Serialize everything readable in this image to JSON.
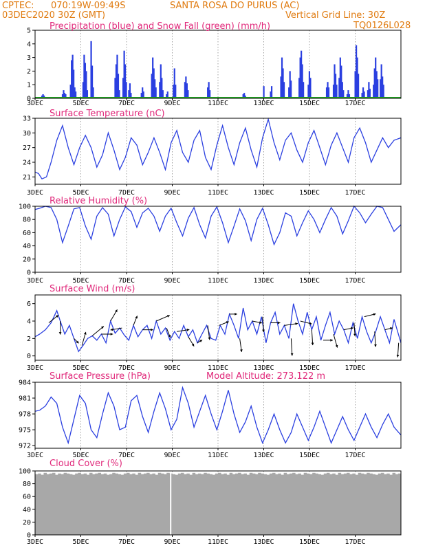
{
  "header": {
    "source": "CPTEC:",
    "coords": "070:19W-09:49S",
    "station": "SANTA ROSA DO PURUS (AC)",
    "run_time": "03DEC2020 30Z (GMT)",
    "grid_note": "Vertical Grid Line: 30Z",
    "model_code": "TQ0126L028"
  },
  "colors": {
    "header": "#e07b10",
    "title": "#e0287a",
    "precip": "#2a3fe0",
    "snow": "#22aa22",
    "line": "#2a3fe0",
    "cloud": "#a8a8a8",
    "wind_arrow": "#000000"
  },
  "x_axis": {
    "start_label": "3DEC",
    "labels": [
      "3DEC",
      "5DEC",
      "7DEC",
      "9DEC",
      "11DEC",
      "13DEC",
      "15DEC",
      "17DEC"
    ],
    "days_span": [
      3.0,
      19.0
    ],
    "label_days": [
      3,
      5,
      7,
      9,
      11,
      13,
      15,
      17
    ]
  },
  "chart_data": [
    {
      "type": "bar",
      "title": "Precipitation (blue) and Snow Fall (green) (mm/h)",
      "ylim": [
        0,
        5
      ],
      "yticks": [
        "0",
        "1",
        "2",
        "3",
        "4",
        "5"
      ],
      "bursts": [
        {
          "day": 3.3,
          "values": [
            0.2,
            0.3,
            0.2
          ]
        },
        {
          "day": 4.2,
          "values": [
            0.3,
            0.6,
            0.4,
            0.3
          ]
        },
        {
          "day": 4.55,
          "values": [
            1.0,
            2.8,
            3.2,
            2.1,
            0.8,
            0.5
          ]
        },
        {
          "day": 5.1,
          "values": [
            1.2,
            3.2,
            2.6,
            2.0,
            0.6
          ]
        },
        {
          "day": 5.45,
          "values": [
            4.2,
            2.4,
            0.8
          ]
        },
        {
          "day": 6.5,
          "values": [
            1.5,
            2.5,
            3.2,
            1.8,
            0.6
          ]
        },
        {
          "day": 6.85,
          "values": [
            1.5,
            3.5,
            2.5,
            1.2
          ]
        },
        {
          "day": 7.1,
          "values": [
            0.6,
            1.1,
            0.4
          ]
        },
        {
          "day": 7.65,
          "values": [
            0.4,
            0.8,
            0.5
          ]
        },
        {
          "day": 8.1,
          "values": [
            1.8,
            3.0,
            2.2,
            1.4,
            0.8
          ]
        },
        {
          "day": 8.45,
          "values": [
            1.2,
            2.5,
            1.5,
            0.6
          ]
        },
        {
          "day": 8.75,
          "values": [
            0.3,
            0.5
          ]
        },
        {
          "day": 9.05,
          "values": [
            1.0,
            2.2,
            1.0
          ]
        },
        {
          "day": 9.55,
          "values": [
            1.2,
            1.6,
            1.1,
            0.6
          ]
        },
        {
          "day": 10.55,
          "values": [
            0.8,
            1.2,
            0.6
          ]
        },
        {
          "day": 12.1,
          "values": [
            0.3,
            0.4,
            0.2
          ]
        },
        {
          "day": 13.0,
          "values": [
            0.9
          ]
        },
        {
          "day": 13.3,
          "values": [
            0.5,
            0.9
          ]
        },
        {
          "day": 13.75,
          "values": [
            1.6,
            3.0,
            2.2,
            1.2
          ]
        },
        {
          "day": 14.1,
          "values": [
            0.8,
            2.0,
            1.3
          ]
        },
        {
          "day": 14.55,
          "values": [
            1.5,
            3.0,
            3.5,
            2.5,
            1.2
          ]
        },
        {
          "day": 14.95,
          "values": [
            1.0,
            2.0,
            1.5
          ]
        },
        {
          "day": 15.75,
          "values": [
            0.8,
            1.2,
            0.8
          ]
        },
        {
          "day": 16.05,
          "values": [
            1.0,
            2.5,
            1.8,
            1.0
          ]
        },
        {
          "day": 16.3,
          "values": [
            1.5,
            3.0,
            2.4,
            1.2,
            0.6
          ]
        },
        {
          "day": 16.65,
          "values": [
            0.3,
            0.6,
            0.3
          ]
        },
        {
          "day": 17.0,
          "values": [
            2.0,
            3.9,
            3.0,
            1.8
          ]
        },
        {
          "day": 17.3,
          "values": [
            0.4,
            0.8,
            0.5
          ]
        },
        {
          "day": 17.55,
          "values": [
            0.6,
            1.2,
            0.7
          ]
        },
        {
          "day": 17.8,
          "values": [
            1.0,
            2.2,
            3.0,
            2.0,
            1.4
          ]
        },
        {
          "day": 18.1,
          "values": [
            1.4,
            2.5,
            1.6,
            1.0
          ]
        }
      ],
      "snow": 0
    },
    {
      "type": "line",
      "title": "Surface Temperature (nC)",
      "ylim": [
        19.5,
        33
      ],
      "yticks": [
        21,
        24,
        27,
        30,
        33
      ],
      "x": [
        3.0,
        3.15,
        3.3,
        3.5,
        3.7,
        3.95,
        4.2,
        4.45,
        4.7,
        4.95,
        5.2,
        5.45,
        5.7,
        5.95,
        6.2,
        6.45,
        6.7,
        6.95,
        7.2,
        7.45,
        7.7,
        7.95,
        8.2,
        8.45,
        8.7,
        8.95,
        9.2,
        9.45,
        9.7,
        9.95,
        10.2,
        10.45,
        10.7,
        10.95,
        11.2,
        11.45,
        11.7,
        11.95,
        12.2,
        12.45,
        12.7,
        12.95,
        13.2,
        13.45,
        13.7,
        13.95,
        14.2,
        14.45,
        14.7,
        14.95,
        15.2,
        15.45,
        15.7,
        15.95,
        16.2,
        16.45,
        16.7,
        16.95,
        17.2,
        17.45,
        17.7,
        17.95,
        18.2,
        18.45,
        18.7,
        19.0
      ],
      "y": [
        22,
        21.7,
        20.6,
        21,
        24,
        28.5,
        31.5,
        27,
        23.5,
        27,
        29.5,
        27,
        23,
        25.5,
        30,
        26.5,
        22.5,
        25,
        29,
        27.5,
        23.5,
        26,
        29,
        26,
        22.5,
        28,
        30.5,
        26,
        24,
        28.5,
        30.5,
        25,
        22.5,
        27.5,
        31.5,
        27,
        23.5,
        28,
        31,
        26.5,
        23,
        29,
        32.8,
        28,
        24.5,
        28.5,
        30,
        26.5,
        24,
        28,
        30.5,
        27,
        23.5,
        27.5,
        30,
        27,
        24,
        29,
        31,
        28,
        24,
        26.5,
        29,
        27,
        28.5,
        29
      ],
      "xlabels": [
        "3DEC",
        "5DEC",
        "7DEC",
        "9DEC",
        "11DEC",
        "13DEC",
        "15DEC",
        "17DEC"
      ]
    },
    {
      "type": "line",
      "title": "Relative Humidity (%)",
      "ylim": [
        0,
        100
      ],
      "yticks": [
        0,
        20,
        40,
        60,
        80,
        100
      ],
      "x": [
        3.0,
        3.2,
        3.45,
        3.7,
        3.95,
        4.2,
        4.45,
        4.7,
        4.95,
        5.2,
        5.45,
        5.7,
        5.95,
        6.2,
        6.45,
        6.7,
        6.95,
        7.2,
        7.45,
        7.7,
        7.95,
        8.2,
        8.45,
        8.7,
        8.95,
        9.2,
        9.45,
        9.7,
        9.95,
        10.2,
        10.45,
        10.7,
        10.95,
        11.2,
        11.45,
        11.7,
        11.95,
        12.2,
        12.45,
        12.7,
        12.95,
        13.2,
        13.45,
        13.7,
        13.95,
        14.2,
        14.45,
        14.7,
        14.95,
        15.2,
        15.45,
        15.7,
        15.95,
        16.2,
        16.45,
        16.7,
        16.95,
        17.2,
        17.45,
        17.7,
        17.95,
        18.2,
        18.45,
        18.7,
        19.0
      ],
      "y": [
        95,
        97,
        100,
        98,
        80,
        45,
        70,
        96,
        98,
        70,
        50,
        85,
        98,
        88,
        55,
        80,
        99,
        92,
        68,
        90,
        97,
        85,
        62,
        85,
        97,
        75,
        55,
        82,
        98,
        72,
        52,
        85,
        99,
        75,
        45,
        70,
        96,
        78,
        48,
        80,
        97,
        72,
        42,
        60,
        90,
        85,
        55,
        75,
        93,
        80,
        60,
        80,
        98,
        85,
        58,
        78,
        100,
        90,
        75,
        88,
        100,
        98,
        80,
        62,
        72
      ],
      "xlabels": [
        "3DEC",
        "5DEC",
        "7DEC",
        "9DEC",
        "11DEC",
        "13DEC",
        "15DEC",
        "17DEC"
      ]
    },
    {
      "type": "line",
      "title": "Surface Wind (m/s)",
      "ylim": [
        -0.5,
        7
      ],
      "yticks": [
        0,
        2,
        4,
        6
      ],
      "x": [
        3.0,
        3.2,
        3.45,
        3.7,
        3.95,
        4.1,
        4.3,
        4.5,
        4.7,
        4.9,
        5.1,
        5.3,
        5.5,
        5.7,
        5.9,
        6.1,
        6.3,
        6.5,
        6.7,
        6.9,
        7.1,
        7.3,
        7.5,
        7.7,
        7.9,
        8.1,
        8.3,
        8.5,
        8.7,
        8.9,
        9.1,
        9.3,
        9.5,
        9.7,
        9.9,
        10.1,
        10.3,
        10.5,
        10.7,
        10.9,
        11.1,
        11.3,
        11.5,
        11.7,
        11.9,
        12.1,
        12.3,
        12.5,
        12.7,
        12.9,
        13.1,
        13.3,
        13.5,
        13.7,
        13.9,
        14.1,
        14.3,
        14.5,
        14.7,
        14.9,
        15.1,
        15.3,
        15.5,
        15.7,
        15.9,
        16.1,
        16.3,
        16.5,
        16.7,
        16.9,
        17.1,
        17.3,
        17.5,
        17.7,
        17.9,
        18.1,
        18.3,
        18.5,
        18.7,
        19.0
      ],
      "y": [
        2.2,
        2.5,
        3.0,
        3.8,
        5.2,
        4.0,
        2.5,
        3.5,
        2.0,
        0.5,
        1.2,
        2.0,
        2.3,
        1.8,
        2.5,
        1.5,
        4.0,
        2.6,
        3.2,
        2.4,
        1.8,
        3.5,
        2.2,
        3.0,
        3.5,
        2.0,
        4.0,
        2.5,
        3.2,
        1.8,
        2.8,
        2.0,
        3.5,
        2.2,
        3.0,
        1.5,
        2.5,
        3.5,
        2.0,
        1.8,
        3.5,
        2.5,
        4.8,
        3.5,
        2.0,
        5.5,
        3.0,
        4.0,
        2.5,
        4.5,
        1.5,
        3.8,
        5.0,
        2.5,
        3.5,
        2.0,
        6.0,
        4.0,
        2.5,
        5.0,
        3.0,
        4.5,
        1.8,
        3.5,
        5.0,
        2.5,
        4.0,
        3.0,
        1.5,
        3.8,
        2.0,
        4.5,
        2.8,
        1.5,
        2.8,
        4.5,
        3.0,
        1.5,
        4.2,
        1.5
      ],
      "arrows": [
        {
          "day": 3.6,
          "u": 1.0,
          "v": 0.8
        },
        {
          "day": 4.1,
          "u": 0.0,
          "v": -1.4
        },
        {
          "day": 4.7,
          "u": 0.5,
          "v": -0.5
        },
        {
          "day": 5.05,
          "u": 0.4,
          "v": 1.4
        },
        {
          "day": 5.5,
          "u": 1.2,
          "v": 1.0
        },
        {
          "day": 5.9,
          "u": 1.2,
          "v": 0.0
        },
        {
          "day": 6.3,
          "u": 0.7,
          "v": 1.2
        },
        {
          "day": 6.8,
          "u": -1.2,
          "v": -0.2
        },
        {
          "day": 7.3,
          "u": 0.4,
          "v": 1.0
        },
        {
          "day": 7.7,
          "u": 1.1,
          "v": 0.0
        },
        {
          "day": 8.3,
          "u": 1.4,
          "v": 0.6
        },
        {
          "day": 8.75,
          "u": 0.4,
          "v": -1.0
        },
        {
          "day": 9.2,
          "u": 1.3,
          "v": 0.2
        },
        {
          "day": 9.7,
          "u": 0.6,
          "v": -1.0
        },
        {
          "day": 10.1,
          "u": 0.5,
          "v": 0.3
        },
        {
          "day": 10.55,
          "u": 0.2,
          "v": -1.5
        },
        {
          "day": 11.05,
          "u": 1.0,
          "v": 0.4
        },
        {
          "day": 11.5,
          "u": 0.8,
          "v": 0.0
        },
        {
          "day": 11.95,
          "u": 0.2,
          "v": -1.4
        },
        {
          "day": 12.5,
          "u": 1.0,
          "v": -0.2
        },
        {
          "day": 12.95,
          "u": 0.1,
          "v": -1.6
        },
        {
          "day": 13.3,
          "u": 1.0,
          "v": 0.0
        },
        {
          "day": 13.9,
          "u": 1.4,
          "v": 0.2
        },
        {
          "day": 14.2,
          "u": 0.1,
          "v": -1.8
        },
        {
          "day": 14.6,
          "u": 1.2,
          "v": -0.3
        },
        {
          "day": 15.1,
          "u": 0.1,
          "v": -1.6
        },
        {
          "day": 15.6,
          "u": 1.0,
          "v": 0.0
        },
        {
          "day": 16.05,
          "u": 0.4,
          "v": -1.4
        },
        {
          "day": 16.5,
          "u": 1.0,
          "v": 0.2
        },
        {
          "day": 16.95,
          "u": 0.1,
          "v": -1.4
        },
        {
          "day": 17.4,
          "u": 1.2,
          "v": 0.3
        },
        {
          "day": 17.85,
          "u": 0.1,
          "v": -1.6
        },
        {
          "day": 18.3,
          "u": 0.8,
          "v": 0.2
        },
        {
          "day": 18.9,
          "u": -0.1,
          "v": -1.5
        }
      ],
      "xlabels": [
        "3DEC",
        "5DEC",
        "7DEC",
        "9DEC",
        "11DEC",
        "13DEC",
        "15DEC",
        "17DEC"
      ]
    },
    {
      "type": "line",
      "title": "Surface Pressure (hPa)",
      "subtitle": "Model Altitude: 273.122 m",
      "ylim": [
        971.5,
        984
      ],
      "yticks": [
        972,
        975,
        978,
        981,
        984
      ],
      "x": [
        3.0,
        3.2,
        3.45,
        3.7,
        3.95,
        4.2,
        4.45,
        4.7,
        4.95,
        5.2,
        5.45,
        5.7,
        5.95,
        6.2,
        6.45,
        6.7,
        6.95,
        7.2,
        7.45,
        7.7,
        7.95,
        8.2,
        8.45,
        8.7,
        8.95,
        9.2,
        9.45,
        9.7,
        9.95,
        10.2,
        10.45,
        10.7,
        10.95,
        11.2,
        11.45,
        11.7,
        11.95,
        12.2,
        12.45,
        12.7,
        12.95,
        13.2,
        13.45,
        13.7,
        13.95,
        14.2,
        14.45,
        14.7,
        14.95,
        15.2,
        15.45,
        15.7,
        15.95,
        16.2,
        16.45,
        16.7,
        16.95,
        17.2,
        17.45,
        17.7,
        17.95,
        18.2,
        18.45,
        18.7,
        19.0
      ],
      "y": [
        978.5,
        978.7,
        979.5,
        981.2,
        980,
        975.5,
        972.5,
        977,
        981.5,
        980,
        975,
        973.5,
        978,
        982,
        979.5,
        975,
        975.5,
        980.5,
        981.5,
        977.5,
        974.5,
        978.5,
        982,
        979,
        975,
        977,
        983,
        980,
        975.5,
        978.5,
        981.5,
        978,
        975,
        978.5,
        982.5,
        978,
        974.5,
        976.5,
        979.5,
        975.5,
        972.5,
        975,
        978,
        975,
        972.5,
        974.5,
        978,
        975.5,
        973,
        975.5,
        978.5,
        975.5,
        972.5,
        975,
        977.5,
        975,
        973,
        975.5,
        978,
        975.5,
        973.5,
        976,
        978,
        975.5,
        974
      ]
    },
    {
      "type": "bar",
      "title": "Cloud Cover (%)",
      "ylim": [
        0,
        100
      ],
      "yticks": [
        0,
        20,
        40,
        60,
        80,
        100
      ],
      "gap_day": 8.9,
      "values": [
        95,
        96,
        94,
        97,
        95,
        96,
        97,
        94,
        96,
        95,
        97,
        96,
        95,
        94,
        96,
        97,
        95,
        96,
        94,
        97,
        95,
        96,
        97,
        95,
        96,
        94,
        95,
        97,
        96,
        95,
        94,
        96,
        97,
        95,
        96,
        94,
        97,
        95,
        96,
        97,
        95,
        96,
        94,
        97,
        96,
        95,
        97,
        96,
        95,
        94,
        96,
        97,
        95,
        96,
        94,
        97,
        95,
        96,
        95,
        97,
        96,
        95,
        94,
        96,
        97,
        95,
        96,
        94,
        97,
        95,
        96,
        97,
        95,
        96,
        94,
        97,
        96,
        95,
        97,
        96,
        95,
        94,
        96,
        97,
        95,
        96,
        94,
        97,
        95,
        96,
        97,
        95,
        96,
        94,
        97,
        96,
        95,
        97,
        96,
        95,
        94,
        96,
        97,
        95,
        96,
        94,
        97,
        95,
        96,
        97,
        95,
        96,
        94,
        97,
        96,
        95,
        97,
        96,
        95,
        94,
        96,
        97,
        95,
        96,
        94,
        97,
        95,
        96
      ],
      "xlabels": [
        "3DEC",
        "5DEC",
        "7DEC",
        "9DEC",
        "11DEC",
        "13DEC",
        "15DEC",
        "17DEC"
      ]
    }
  ]
}
